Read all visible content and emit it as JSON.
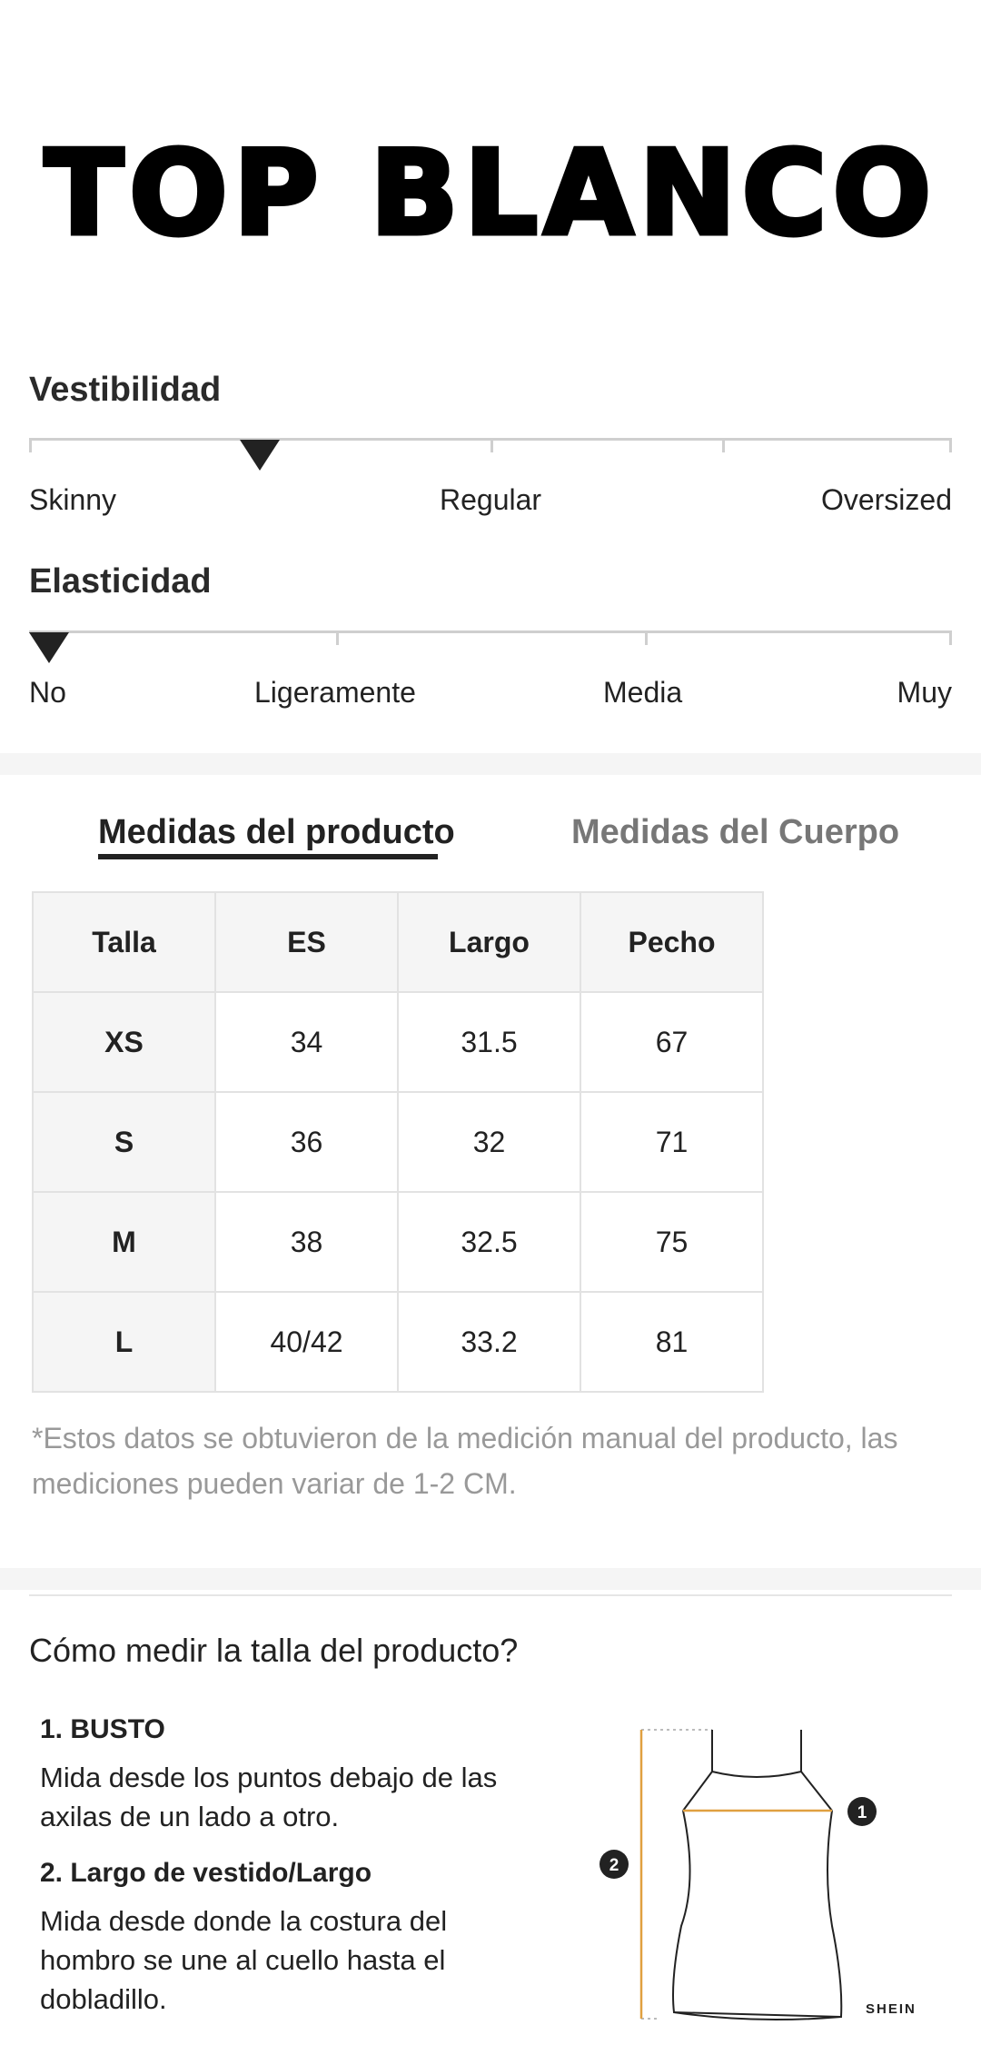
{
  "title": "TOP BLANCO",
  "fit": {
    "label": "Vestibilidad",
    "options": [
      "Skinny",
      "Regular",
      "Oversized"
    ],
    "selected": "Skinny-Regular"
  },
  "elasticity": {
    "label": "Elasticidad",
    "options": [
      "No",
      "Ligeramente",
      "Media",
      "Muy"
    ],
    "selected": "No"
  },
  "tabs": [
    {
      "label": "Medidas del producto",
      "active": true
    },
    {
      "label": "Medidas del Cuerpo",
      "active": false
    }
  ],
  "size_table": {
    "headers": [
      "Talla",
      "ES",
      "Largo",
      "Pecho"
    ],
    "rows": [
      [
        "XS",
        "34",
        "31.5",
        "67"
      ],
      [
        "S",
        "36",
        "32",
        "71"
      ],
      [
        "M",
        "38",
        "32.5",
        "75"
      ],
      [
        "L",
        "40/42",
        "33.2",
        "81"
      ]
    ]
  },
  "note": "*Estos datos se obtuvieron de la medición manual del producto, las mediciones pueden variar de 1-2 CM.",
  "how_to": {
    "title": "Cómo medir la talla del producto?",
    "items": [
      {
        "heading": "1. BUSTO",
        "text": "Mida desde los puntos debajo de las axilas de un lado a otro."
      },
      {
        "heading": "2. Largo de vestido/Largo",
        "text": "Mida desde donde la costura del hombro se une al cuello hasta el dobladillo."
      }
    ],
    "diagram_markers": [
      "1",
      "2"
    ],
    "brand": "SHEIN"
  },
  "colors": {
    "accent": "#222222",
    "measure_line": "#e0a040",
    "band": "#f5f5f5"
  }
}
